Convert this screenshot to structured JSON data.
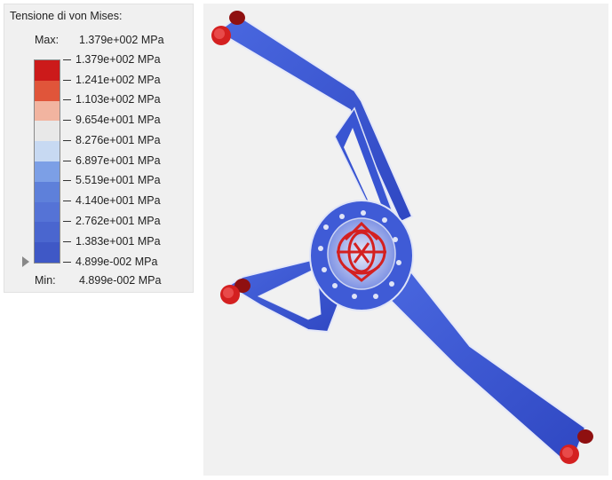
{
  "legend": {
    "title": "Tensione di von Mises:",
    "max_label": "Max:",
    "max_value": "1.379e+002 MPa",
    "min_label": "Min:",
    "min_value": "4.899e-002 MPa",
    "ticks": [
      "1.379e+002 MPa",
      "1.241e+002 MPa",
      "1.103e+002 MPa",
      "9.654e+001 MPa",
      "8.276e+001 MPa",
      "6.897e+001 MPa",
      "5.519e+001 MPa",
      "4.140e+001 MPa",
      "2.762e+001 MPa",
      "1.383e+001 MPa",
      "4.899e-002 MPa"
    ],
    "colors": [
      "#cc1a1a",
      "#e0553a",
      "#f2b4a0",
      "#e8e8e8",
      "#c7d9f2",
      "#7c9fe6",
      "#5e80da",
      "#5573d6",
      "#4a66cf",
      "#3f58c6"
    ]
  },
  "viewport": {
    "part_color": "#3b55d4",
    "hotspot_color": "#d42020"
  }
}
